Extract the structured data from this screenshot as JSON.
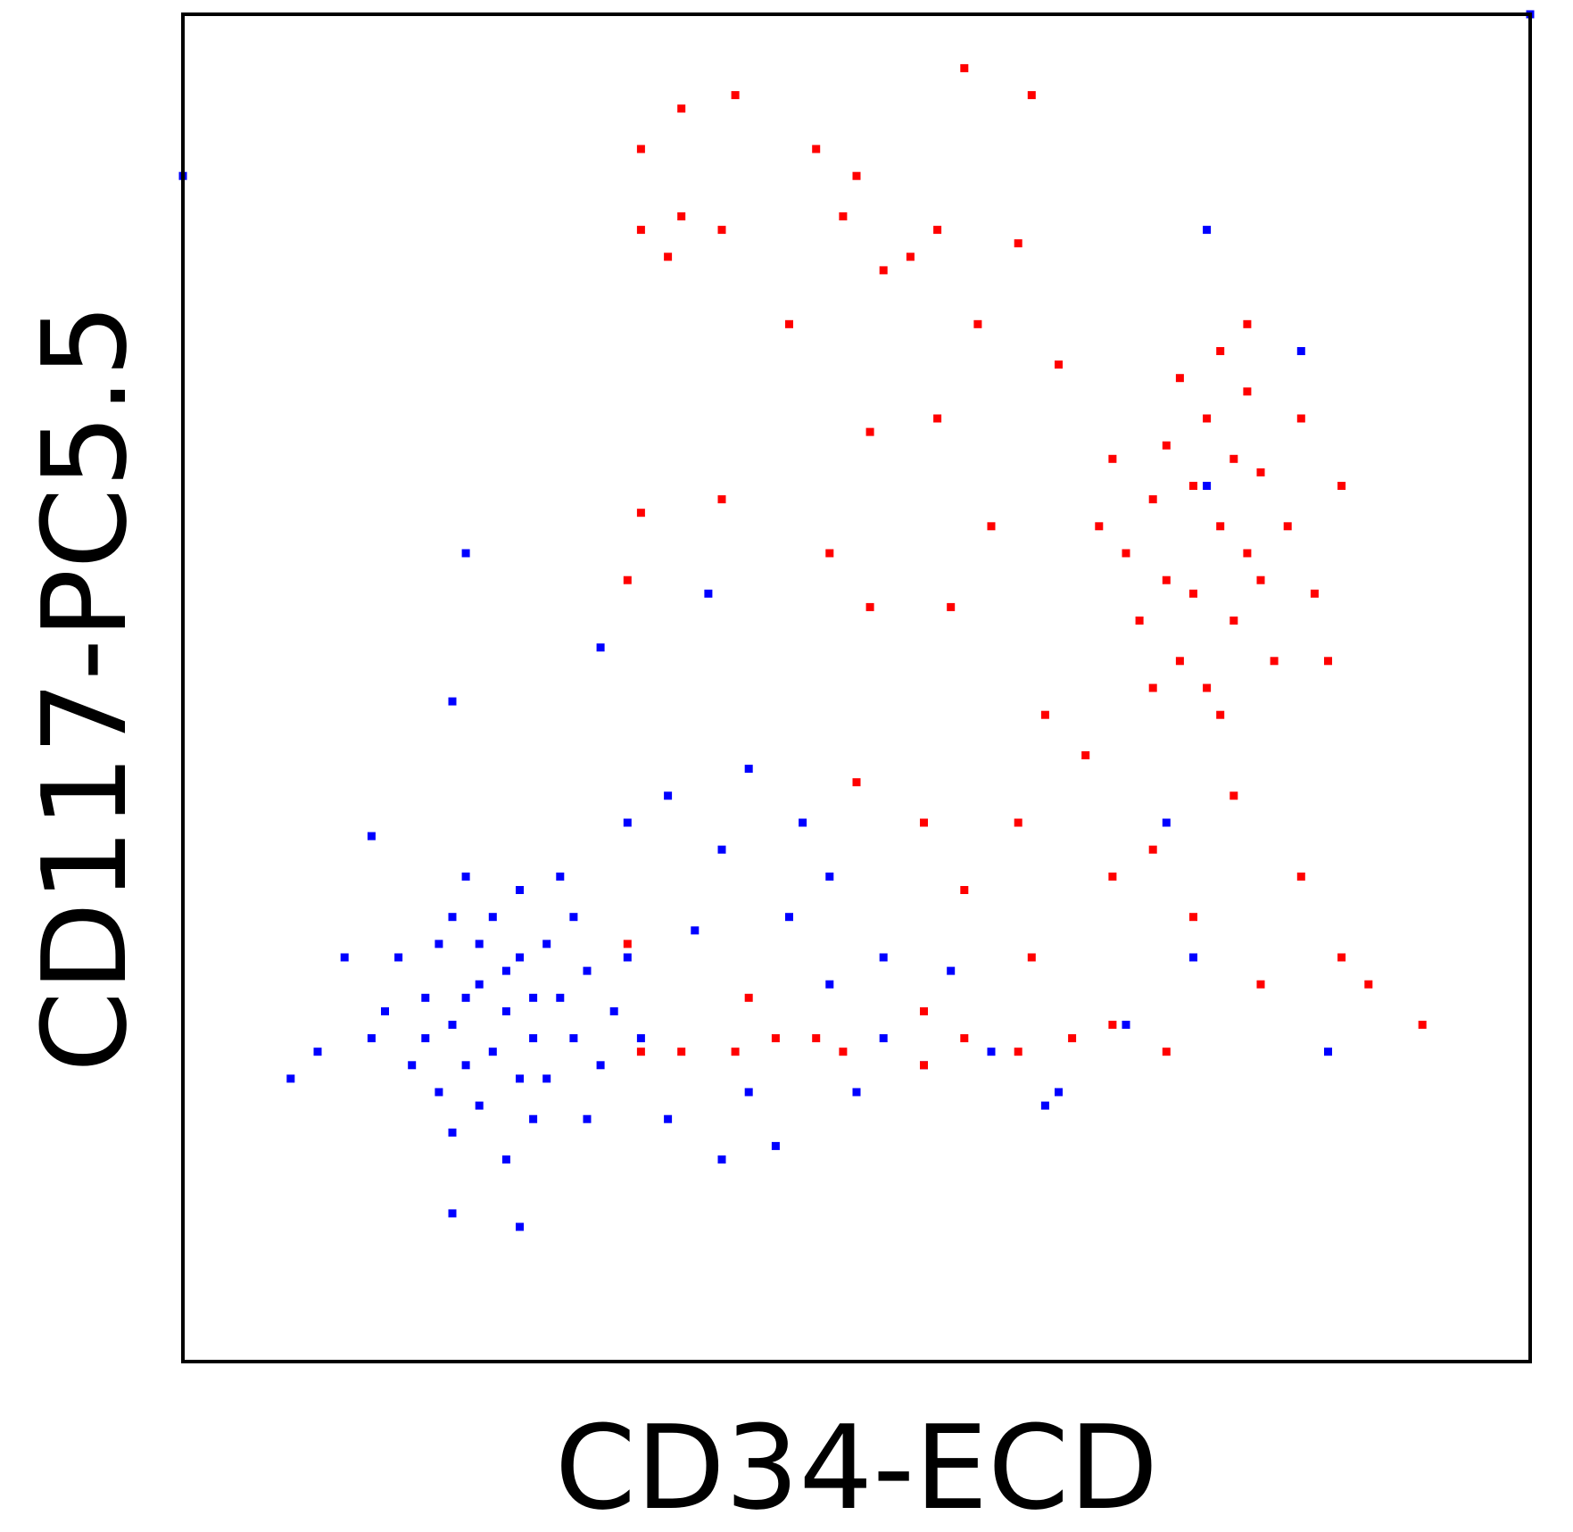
{
  "chart_data": {
    "type": "scatter",
    "x_label": "CD34-ECD",
    "y_label": "CD117-PC5.5",
    "xlim": [
      0,
      100
    ],
    "ylim": [
      0,
      100
    ],
    "series": [
      {
        "color": "#0000ff",
        "x": [
          24,
          22,
          26,
          20,
          28,
          25,
          21,
          27,
          30,
          18,
          23,
          19,
          29,
          32,
          17,
          26,
          22,
          24,
          20,
          31,
          33,
          15,
          16,
          28,
          25,
          21,
          34,
          30,
          14,
          19,
          23,
          27,
          24,
          21,
          26,
          29,
          18,
          22,
          25,
          20,
          33,
          36,
          40,
          42,
          45,
          48,
          52,
          55,
          50,
          44,
          40,
          38,
          46,
          31,
          39,
          21,
          10,
          8,
          14,
          20,
          48,
          57,
          52,
          36,
          42,
          60,
          65,
          70,
          75,
          85,
          73,
          76,
          100,
          0,
          83,
          76,
          64,
          20,
          25,
          12
        ],
        "values": [
          26,
          28,
          24,
          25,
          27,
          30,
          22,
          21,
          29,
          27,
          33,
          31,
          33,
          26,
          22,
          18,
          19,
          15,
          17,
          22,
          30,
          26,
          30,
          36,
          35,
          36,
          24,
          18,
          24,
          20,
          23,
          31,
          29,
          27,
          27,
          24,
          24,
          31,
          21,
          33,
          40,
          42,
          38,
          44,
          33,
          28,
          24,
          22,
          20,
          16,
          15,
          32,
          40,
          53,
          57,
          60,
          23,
          21,
          39,
          49,
          36,
          29,
          30,
          18,
          20,
          23,
          20,
          25,
          30,
          23,
          40,
          84,
          100,
          88,
          75,
          65,
          19,
          11,
          10,
          30
        ]
      },
      {
        "color": "#ff0000",
        "x": [
          77,
          75,
          79,
          73,
          80,
          76,
          78,
          72,
          82,
          74,
          79,
          77,
          70,
          84,
          76,
          81,
          73,
          68,
          86,
          78,
          75,
          80,
          71,
          83,
          77,
          74,
          69,
          85,
          72,
          79,
          34,
          37,
          41,
          47,
          58,
          63,
          50,
          34,
          37,
          40,
          36,
          49,
          56,
          54,
          52,
          45,
          62,
          59,
          65,
          56,
          51,
          34,
          40,
          33,
          60,
          57,
          48,
          51,
          64,
          62,
          67,
          69,
          72,
          78,
          83,
          75,
          80,
          86,
          92,
          88,
          58,
          63,
          55,
          50,
          34,
          37,
          41,
          44,
          47,
          49,
          55,
          58,
          62,
          66,
          69,
          73,
          33,
          42,
          55
        ],
        "values": [
          62,
          65,
          60,
          58,
          66,
          70,
          55,
          64,
          62,
          52,
          72,
          75,
          60,
          57,
          50,
          52,
          68,
          62,
          65,
          67,
          57,
          58,
          55,
          70,
          48,
          73,
          67,
          52,
          50,
          77,
          90,
          93,
          94,
          90,
          96,
          94,
          88,
          84,
          85,
          84,
          82,
          85,
          84,
          82,
          81,
          77,
          83,
          77,
          74,
          70,
          69,
          63,
          64,
          58,
          62,
          56,
          60,
          56,
          48,
          40,
          45,
          36,
          38,
          42,
          36,
          33,
          28,
          30,
          25,
          28,
          35,
          30,
          40,
          43,
          23,
          23,
          23,
          24,
          24,
          23,
          22,
          24,
          23,
          24,
          25,
          23,
          31,
          27,
          26
        ]
      }
    ]
  }
}
